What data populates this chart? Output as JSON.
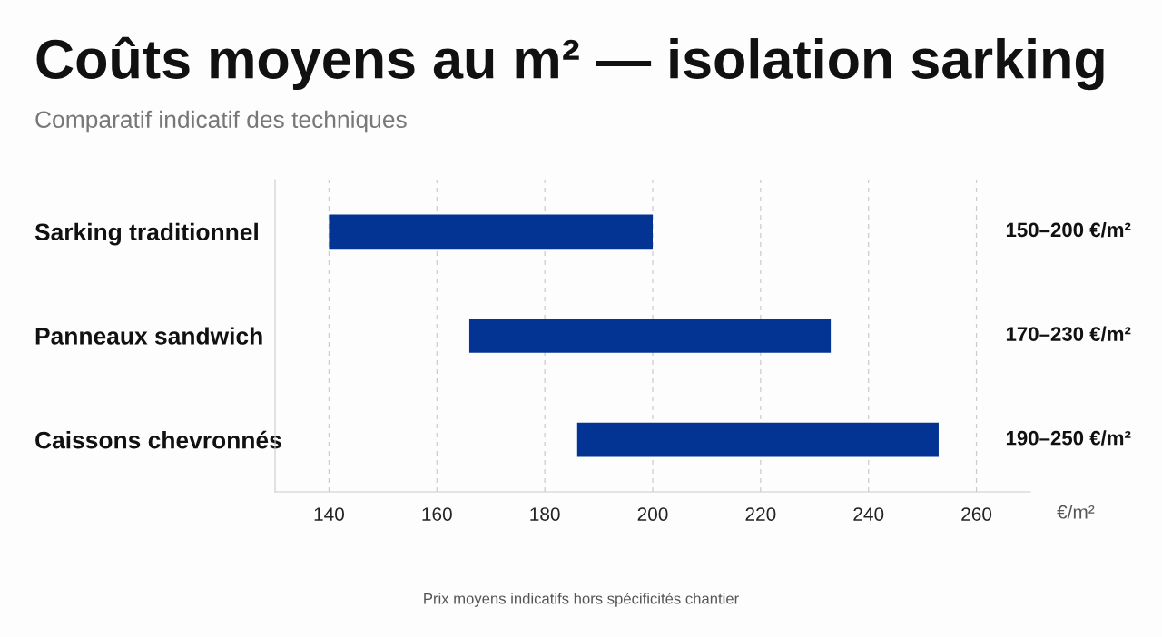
{
  "chart_data": {
    "type": "bar",
    "orientation": "horizontal",
    "title": "Coûts moyens au m² — isolation sarking",
    "subtitle": "Comparatif indicatif des techniques",
    "xlabel": "€/m²",
    "categories": [
      "Sarking traditionnel",
      "Panneaux sandwich",
      "Caissons chevronnés"
    ],
    "base": [
      140,
      166,
      186
    ],
    "values": [
      60,
      67,
      67
    ],
    "color": "#033494",
    "value_labels": [
      "150–200 €/m²",
      "170–230 €/m²",
      "190–250 €/m²"
    ],
    "xlim": [
      130,
      270
    ],
    "xticks": [
      140,
      160,
      180,
      200,
      220,
      240,
      260
    ],
    "grid": "x",
    "legend": false,
    "annotations": [
      "Prix moyens indicatifs hors spécificités chantier"
    ]
  }
}
